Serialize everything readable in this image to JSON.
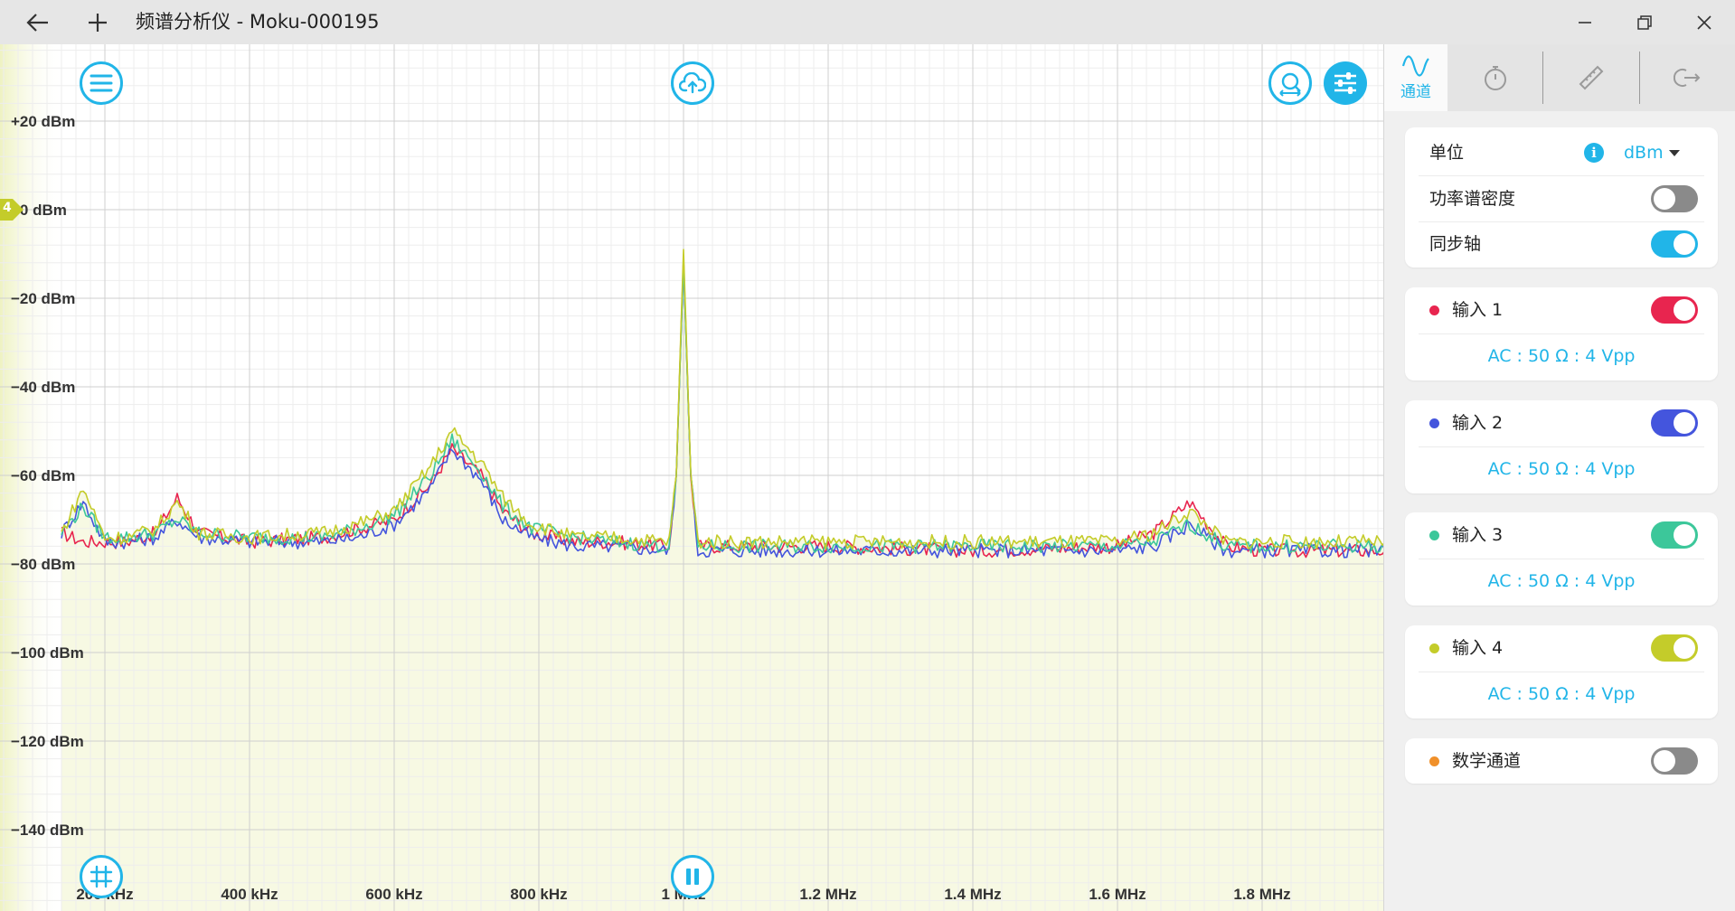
{
  "titlebar": {
    "title": "频谱分析仪 - Moku-000195",
    "back_icon": "back-arrow-icon",
    "new_icon": "plus-icon"
  },
  "plot": {
    "y_axis_labels": [
      "+20 dBm",
      "+0 dBm",
      "−20 dBm",
      "−40 dBm",
      "−60 dBm",
      "−80 dBm",
      "−100 dBm",
      "−120 dBm",
      "−140 dBm"
    ],
    "x_axis_labels": [
      "200 kHz",
      "400 kHz",
      "600 kHz",
      "800 kHz",
      "1 MHz",
      "1.2 MHz",
      "1.4 MHz",
      "1.6 MHz",
      "1.8 MHz"
    ],
    "active_channel_marker": "4",
    "colors": {
      "input1": "#e8254f",
      "input2": "#4455dd",
      "input3": "#3cc79a",
      "input4": "#c4cc2a",
      "accent": "#21b5e8"
    }
  },
  "chart_data": {
    "type": "line",
    "xlabel": "",
    "ylabel": "",
    "xlim": [
      140000,
      1970000
    ],
    "ylim": [
      -150,
      25
    ],
    "x_ticks": [
      "200 kHz",
      "400 kHz",
      "600 kHz",
      "800 kHz",
      "1 MHz",
      "1.2 MHz",
      "1.4 MHz",
      "1.6 MHz",
      "1.8 MHz"
    ],
    "y_ticks": [
      "+20 dBm",
      "+0 dBm",
      "−20 dBm",
      "−40 dBm",
      "−60 dBm",
      "−80 dBm",
      "−100 dBm",
      "−120 dBm",
      "−140 dBm"
    ],
    "grid": true,
    "series": [
      {
        "name": "输入 1",
        "color": "#e8254f",
        "x": [
          140000,
          170000,
          200000,
          230000,
          270000,
          300000,
          330000,
          400000,
          500000,
          550000,
          600000,
          650000,
          680000,
          720000,
          750000,
          790000,
          850000,
          900000,
          980000,
          990000,
          1000000,
          1010000,
          1020000,
          1200000,
          1400000,
          1600000,
          1650000,
          1700000,
          1750000,
          1800000,
          1970000
        ],
        "y": [
          -73,
          -75,
          -75,
          -75,
          -73,
          -65,
          -73,
          -75,
          -74,
          -72,
          -70,
          -62,
          -54,
          -60,
          -68,
          -73,
          -75,
          -75,
          -76,
          -60,
          -11,
          -60,
          -76,
          -76,
          -77,
          -76,
          -73,
          -66,
          -76,
          -77,
          -77
        ]
      },
      {
        "name": "输入 2",
        "color": "#4455dd",
        "x": [
          140000,
          170000,
          200000,
          230000,
          270000,
          300000,
          330000,
          400000,
          500000,
          550000,
          600000,
          650000,
          680000,
          720000,
          750000,
          790000,
          850000,
          900000,
          980000,
          990000,
          1000000,
          1010000,
          1020000,
          1200000,
          1400000,
          1600000,
          1650000,
          1700000,
          1750000,
          1800000,
          1970000
        ],
        "y": [
          -73,
          -66,
          -75,
          -75,
          -74,
          -70,
          -74,
          -75,
          -75,
          -74,
          -71,
          -63,
          -54,
          -61,
          -70,
          -74,
          -76,
          -76,
          -77,
          -60,
          -12,
          -60,
          -77,
          -77,
          -77,
          -77,
          -76,
          -71,
          -77,
          -77,
          -77
        ]
      },
      {
        "name": "输入 3",
        "color": "#3cc79a",
        "x": [
          140000,
          170000,
          200000,
          230000,
          270000,
          300000,
          330000,
          400000,
          500000,
          550000,
          600000,
          650000,
          680000,
          720000,
          750000,
          790000,
          850000,
          900000,
          980000,
          990000,
          1000000,
          1010000,
          1020000,
          1200000,
          1400000,
          1600000,
          1650000,
          1700000,
          1750000,
          1800000,
          1970000
        ],
        "y": [
          -73,
          -67,
          -74,
          -74,
          -73,
          -70,
          -73,
          -74,
          -74,
          -72,
          -69,
          -60,
          -52,
          -59,
          -67,
          -72,
          -74,
          -75,
          -76,
          -60,
          -12,
          -60,
          -76,
          -76,
          -76,
          -76,
          -75,
          -71,
          -76,
          -76,
          -76
        ]
      },
      {
        "name": "输入 4",
        "color": "#c4cc2a",
        "x": [
          140000,
          170000,
          200000,
          230000,
          270000,
          300000,
          330000,
          400000,
          500000,
          550000,
          600000,
          650000,
          680000,
          720000,
          750000,
          790000,
          850000,
          900000,
          980000,
          990000,
          1000000,
          1010000,
          1020000,
          1200000,
          1400000,
          1600000,
          1650000,
          1700000,
          1750000,
          1800000,
          1970000
        ],
        "y": [
          -73,
          -63,
          -74,
          -74,
          -72,
          -66,
          -73,
          -74,
          -73,
          -71,
          -68,
          -58,
          -50,
          -57,
          -65,
          -71,
          -74,
          -74,
          -75,
          -60,
          -9,
          -60,
          -75,
          -75,
          -75,
          -75,
          -73,
          -68,
          -75,
          -75,
          -75
        ]
      }
    ]
  },
  "tabs": [
    {
      "icon": "wave-icon",
      "label": "通道",
      "active": true
    },
    {
      "icon": "stopwatch-icon",
      "label": "",
      "active": false
    },
    {
      "icon": "ruler-icon",
      "label": "",
      "active": false
    },
    {
      "icon": "export-icon",
      "label": "",
      "active": false
    }
  ],
  "settings": {
    "unit_label": "单位",
    "unit_value": "dBm",
    "psd_label": "功率谱密度",
    "psd_on": false,
    "sync_axis_label": "同步轴",
    "sync_axis_on": true
  },
  "channels": [
    {
      "label": "输入 1",
      "coupling": "AC : 50 Ω : 4 Vpp",
      "color": "#e8254f",
      "enabled": true
    },
    {
      "label": "输入 2",
      "coupling": "AC : 50 Ω : 4 Vpp",
      "color": "#4455dd",
      "enabled": true
    },
    {
      "label": "输入 3",
      "coupling": "AC : 50 Ω : 4 Vpp",
      "color": "#3cc79a",
      "enabled": true
    },
    {
      "label": "输入 4",
      "coupling": "AC : 50 Ω : 4 Vpp",
      "color": "#c4cc2a",
      "enabled": true
    }
  ],
  "math_channel": {
    "label": "数学通道",
    "color": "#f0902a",
    "enabled": false
  }
}
